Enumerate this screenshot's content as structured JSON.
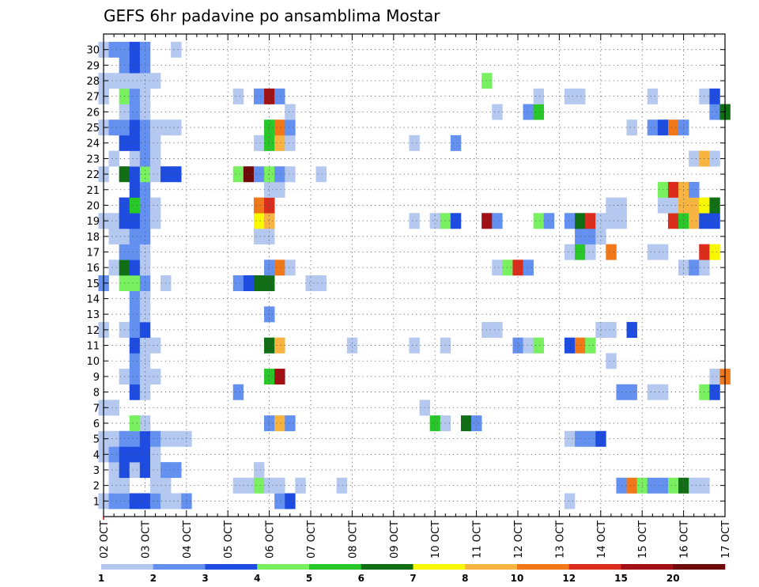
{
  "chart_data": {
    "type": "heatmap",
    "title": "GEFS 6hr padavine po ansamblima Mostar",
    "x_ticks": [
      "02 OCT",
      "03 OCT",
      "04 OCT",
      "05 OCT",
      "06 OCT",
      "07 OCT",
      "08 OCT",
      "09 OCT",
      "10 OCT",
      "11 OCT",
      "12 OCT",
      "13 OCT",
      "14 OCT",
      "15 OCT",
      "16 OCT",
      "17 OCT"
    ],
    "y_ticks": [
      "1",
      "2",
      "3",
      "4",
      "5",
      "6",
      "7",
      "8",
      "9",
      "10",
      "11",
      "12",
      "13",
      "14",
      "15",
      "16",
      "17",
      "18",
      "19",
      "20",
      "21",
      "22",
      "23",
      "24",
      "25",
      "26",
      "27",
      "28",
      "29",
      "30"
    ],
    "time_steps_per_day": 4,
    "colorbar": {
      "labels": [
        "1",
        "2",
        "3",
        "4",
        "5",
        "6",
        "7",
        "8",
        "10",
        "12",
        "15",
        "20"
      ],
      "colors": [
        "#b4c8f0",
        "#6490f0",
        "#1e4ce0",
        "#78f060",
        "#28c828",
        "#106e14",
        "#f8f800",
        "#f8b440",
        "#f07818",
        "#dc2c1c",
        "#a01014",
        "#6e0a0a"
      ]
    },
    "cells": [
      [
        1,
        0,
        1
      ],
      [
        1,
        1,
        2
      ],
      [
        1,
        2,
        2
      ],
      [
        1,
        3,
        3
      ],
      [
        1,
        4,
        3
      ],
      [
        1,
        5,
        2
      ],
      [
        1,
        6,
        1
      ],
      [
        1,
        7,
        1
      ],
      [
        1,
        8,
        2
      ],
      [
        1,
        17,
        2
      ],
      [
        1,
        18,
        3
      ],
      [
        1,
        45,
        1
      ],
      [
        2,
        1,
        1
      ],
      [
        2,
        2,
        1
      ],
      [
        2,
        5,
        1
      ],
      [
        2,
        6,
        1
      ],
      [
        2,
        13,
        1
      ],
      [
        2,
        14,
        1
      ],
      [
        2,
        15,
        4
      ],
      [
        2,
        16,
        1
      ],
      [
        2,
        17,
        1
      ],
      [
        2,
        19,
        1
      ],
      [
        2,
        23,
        1
      ],
      [
        2,
        50,
        2
      ],
      [
        2,
        51,
        9
      ],
      [
        2,
        52,
        4
      ],
      [
        2,
        53,
        2
      ],
      [
        2,
        54,
        2
      ],
      [
        2,
        55,
        4
      ],
      [
        2,
        56,
        6
      ],
      [
        2,
        57,
        1
      ],
      [
        2,
        58,
        1
      ],
      [
        3,
        1,
        1
      ],
      [
        3,
        2,
        3
      ],
      [
        3,
        3,
        1
      ],
      [
        3,
        4,
        3
      ],
      [
        3,
        5,
        1
      ],
      [
        3,
        6,
        2
      ],
      [
        3,
        7,
        2
      ],
      [
        3,
        15,
        1
      ],
      [
        4,
        0,
        1
      ],
      [
        4,
        1,
        2
      ],
      [
        4,
        2,
        3
      ],
      [
        4,
        3,
        3
      ],
      [
        4,
        4,
        3
      ],
      [
        4,
        5,
        1
      ],
      [
        5,
        0,
        1
      ],
      [
        5,
        1,
        1
      ],
      [
        5,
        2,
        2
      ],
      [
        5,
        3,
        2
      ],
      [
        5,
        4,
        3
      ],
      [
        5,
        5,
        2
      ],
      [
        5,
        6,
        1
      ],
      [
        5,
        7,
        1
      ],
      [
        5,
        8,
        1
      ],
      [
        5,
        45,
        1
      ],
      [
        5,
        46,
        2
      ],
      [
        5,
        47,
        2
      ],
      [
        5,
        48,
        3
      ],
      [
        6,
        3,
        4
      ],
      [
        6,
        4,
        1
      ],
      [
        6,
        16,
        2
      ],
      [
        6,
        17,
        8
      ],
      [
        6,
        18,
        2
      ],
      [
        6,
        32,
        5
      ],
      [
        6,
        33,
        1
      ],
      [
        6,
        35,
        6
      ],
      [
        6,
        36,
        2
      ],
      [
        7,
        0,
        1
      ],
      [
        7,
        1,
        1
      ],
      [
        7,
        31,
        1
      ],
      [
        8,
        3,
        3
      ],
      [
        8,
        4,
        1
      ],
      [
        8,
        13,
        2
      ],
      [
        8,
        50,
        2
      ],
      [
        8,
        51,
        2
      ],
      [
        8,
        53,
        1
      ],
      [
        8,
        54,
        1
      ],
      [
        8,
        58,
        4
      ],
      [
        8,
        59,
        3
      ],
      [
        9,
        2,
        1
      ],
      [
        9,
        3,
        2
      ],
      [
        9,
        4,
        1
      ],
      [
        9,
        5,
        1
      ],
      [
        9,
        16,
        5
      ],
      [
        9,
        17,
        11
      ],
      [
        9,
        59,
        1
      ],
      [
        9,
        60,
        9
      ],
      [
        10,
        3,
        2
      ],
      [
        10,
        4,
        1
      ],
      [
        10,
        49,
        1
      ],
      [
        11,
        3,
        3
      ],
      [
        11,
        4,
        1
      ],
      [
        11,
        5,
        1
      ],
      [
        11,
        16,
        6
      ],
      [
        11,
        17,
        8
      ],
      [
        11,
        24,
        1
      ],
      [
        11,
        30,
        1
      ],
      [
        11,
        33,
        1
      ],
      [
        11,
        40,
        2
      ],
      [
        11,
        41,
        1
      ],
      [
        11,
        42,
        4
      ],
      [
        11,
        45,
        3
      ],
      [
        11,
        46,
        9
      ],
      [
        11,
        47,
        4
      ],
      [
        12,
        0,
        1
      ],
      [
        12,
        2,
        1
      ],
      [
        12,
        3,
        2
      ],
      [
        12,
        4,
        3
      ],
      [
        12,
        37,
        1
      ],
      [
        12,
        38,
        1
      ],
      [
        12,
        48,
        1
      ],
      [
        12,
        49,
        1
      ],
      [
        12,
        51,
        3
      ],
      [
        13,
        3,
        2
      ],
      [
        13,
        4,
        1
      ],
      [
        13,
        16,
        2
      ],
      [
        14,
        3,
        2
      ],
      [
        14,
        4,
        1
      ],
      [
        15,
        0,
        2
      ],
      [
        15,
        2,
        4
      ],
      [
        15,
        3,
        4
      ],
      [
        15,
        4,
        2
      ],
      [
        15,
        6,
        1
      ],
      [
        15,
        13,
        2
      ],
      [
        15,
        14,
        3
      ],
      [
        15,
        15,
        6
      ],
      [
        15,
        16,
        6
      ],
      [
        15,
        20,
        1
      ],
      [
        15,
        21,
        1
      ],
      [
        16,
        1,
        1
      ],
      [
        16,
        2,
        6
      ],
      [
        16,
        3,
        3
      ],
      [
        16,
        4,
        1
      ],
      [
        16,
        16,
        2
      ],
      [
        16,
        17,
        9
      ],
      [
        16,
        18,
        1
      ],
      [
        16,
        38,
        1
      ],
      [
        16,
        39,
        4
      ],
      [
        16,
        40,
        10
      ],
      [
        16,
        41,
        2
      ],
      [
        16,
        56,
        1
      ],
      [
        16,
        57,
        2
      ],
      [
        16,
        58,
        1
      ],
      [
        17,
        2,
        2
      ],
      [
        17,
        3,
        2
      ],
      [
        17,
        4,
        1
      ],
      [
        17,
        45,
        1
      ],
      [
        17,
        46,
        5
      ],
      [
        17,
        47,
        1
      ],
      [
        17,
        49,
        9
      ],
      [
        17,
        53,
        1
      ],
      [
        17,
        54,
        1
      ],
      [
        17,
        58,
        10
      ],
      [
        17,
        59,
        7
      ],
      [
        18,
        1,
        1
      ],
      [
        18,
        2,
        1
      ],
      [
        18,
        3,
        2
      ],
      [
        18,
        4,
        2
      ],
      [
        18,
        15,
        1
      ],
      [
        18,
        16,
        1
      ],
      [
        18,
        46,
        2
      ],
      [
        18,
        47,
        2
      ],
      [
        18,
        48,
        1
      ],
      [
        19,
        0,
        1
      ],
      [
        19,
        1,
        1
      ],
      [
        19,
        2,
        3
      ],
      [
        19,
        3,
        3
      ],
      [
        19,
        4,
        2
      ],
      [
        19,
        5,
        1
      ],
      [
        19,
        15,
        7
      ],
      [
        19,
        16,
        8
      ],
      [
        19,
        30,
        1
      ],
      [
        19,
        32,
        1
      ],
      [
        19,
        33,
        4
      ],
      [
        19,
        34,
        3
      ],
      [
        19,
        37,
        11
      ],
      [
        19,
        38,
        2
      ],
      [
        19,
        42,
        4
      ],
      [
        19,
        43,
        2
      ],
      [
        19,
        45,
        2
      ],
      [
        19,
        46,
        6
      ],
      [
        19,
        47,
        10
      ],
      [
        19,
        48,
        1
      ],
      [
        19,
        49,
        1
      ],
      [
        19,
        50,
        1
      ],
      [
        19,
        55,
        10
      ],
      [
        19,
        56,
        5
      ],
      [
        19,
        57,
        8
      ],
      [
        19,
        58,
        3
      ],
      [
        19,
        59,
        3
      ],
      [
        20,
        2,
        3
      ],
      [
        20,
        3,
        5
      ],
      [
        20,
        4,
        2
      ],
      [
        20,
        5,
        1
      ],
      [
        20,
        15,
        9
      ],
      [
        20,
        16,
        10
      ],
      [
        20,
        49,
        1
      ],
      [
        20,
        50,
        1
      ],
      [
        20,
        54,
        1
      ],
      [
        20,
        55,
        1
      ],
      [
        20,
        56,
        8
      ],
      [
        20,
        57,
        8
      ],
      [
        20,
        58,
        7
      ],
      [
        20,
        59,
        6
      ],
      [
        21,
        3,
        3
      ],
      [
        21,
        4,
        2
      ],
      [
        21,
        16,
        1
      ],
      [
        21,
        17,
        1
      ],
      [
        21,
        54,
        4
      ],
      [
        21,
        55,
        10
      ],
      [
        21,
        56,
        8
      ],
      [
        21,
        57,
        2
      ],
      [
        22,
        0,
        1
      ],
      [
        22,
        2,
        6
      ],
      [
        22,
        3,
        3
      ],
      [
        22,
        4,
        4
      ],
      [
        22,
        5,
        1
      ],
      [
        22,
        6,
        3
      ],
      [
        22,
        7,
        3
      ],
      [
        22,
        13,
        4
      ],
      [
        22,
        14,
        12
      ],
      [
        22,
        15,
        2
      ],
      [
        22,
        16,
        4
      ],
      [
        22,
        17,
        2
      ],
      [
        22,
        18,
        1
      ],
      [
        22,
        21,
        1
      ],
      [
        23,
        1,
        1
      ],
      [
        23,
        3,
        1
      ],
      [
        23,
        4,
        2
      ],
      [
        23,
        5,
        1
      ],
      [
        23,
        57,
        1
      ],
      [
        23,
        58,
        8
      ],
      [
        23,
        59,
        1
      ],
      [
        24,
        2,
        3
      ],
      [
        24,
        3,
        3
      ],
      [
        24,
        4,
        2
      ],
      [
        24,
        5,
        1
      ],
      [
        24,
        15,
        1
      ],
      [
        24,
        16,
        5
      ],
      [
        24,
        17,
        8
      ],
      [
        24,
        18,
        1
      ],
      [
        24,
        30,
        1
      ],
      [
        24,
        34,
        2
      ],
      [
        25,
        0,
        1
      ],
      [
        25,
        1,
        2
      ],
      [
        25,
        2,
        2
      ],
      [
        25,
        3,
        3
      ],
      [
        25,
        4,
        2
      ],
      [
        25,
        5,
        1
      ],
      [
        25,
        6,
        1
      ],
      [
        25,
        7,
        1
      ],
      [
        25,
        16,
        5
      ],
      [
        25,
        17,
        9
      ],
      [
        25,
        18,
        2
      ],
      [
        25,
        51,
        1
      ],
      [
        25,
        53,
        2
      ],
      [
        25,
        54,
        3
      ],
      [
        25,
        55,
        9
      ],
      [
        25,
        56,
        2
      ],
      [
        26,
        2,
        1
      ],
      [
        26,
        3,
        2
      ],
      [
        26,
        4,
        1
      ],
      [
        26,
        18,
        1
      ],
      [
        26,
        38,
        1
      ],
      [
        26,
        41,
        2
      ],
      [
        26,
        42,
        5
      ],
      [
        26,
        59,
        2
      ],
      [
        26,
        60,
        6
      ],
      [
        27,
        0,
        1
      ],
      [
        27,
        2,
        4
      ],
      [
        27,
        3,
        2
      ],
      [
        27,
        4,
        1
      ],
      [
        27,
        13,
        1
      ],
      [
        27,
        15,
        2
      ],
      [
        27,
        16,
        11
      ],
      [
        27,
        17,
        2
      ],
      [
        27,
        42,
        1
      ],
      [
        27,
        45,
        1
      ],
      [
        27,
        46,
        1
      ],
      [
        27,
        53,
        1
      ],
      [
        27,
        58,
        1
      ],
      [
        27,
        59,
        3
      ],
      [
        28,
        0,
        1
      ],
      [
        28,
        1,
        1
      ],
      [
        28,
        2,
        1
      ],
      [
        28,
        3,
        1
      ],
      [
        28,
        4,
        1
      ],
      [
        28,
        5,
        1
      ],
      [
        28,
        37,
        4
      ],
      [
        29,
        2,
        2
      ],
      [
        29,
        3,
        3
      ],
      [
        29,
        4,
        2
      ],
      [
        30,
        0,
        1
      ],
      [
        30,
        1,
        2
      ],
      [
        30,
        2,
        2
      ],
      [
        30,
        3,
        3
      ],
      [
        30,
        4,
        2
      ],
      [
        30,
        7,
        1
      ]
    ]
  }
}
